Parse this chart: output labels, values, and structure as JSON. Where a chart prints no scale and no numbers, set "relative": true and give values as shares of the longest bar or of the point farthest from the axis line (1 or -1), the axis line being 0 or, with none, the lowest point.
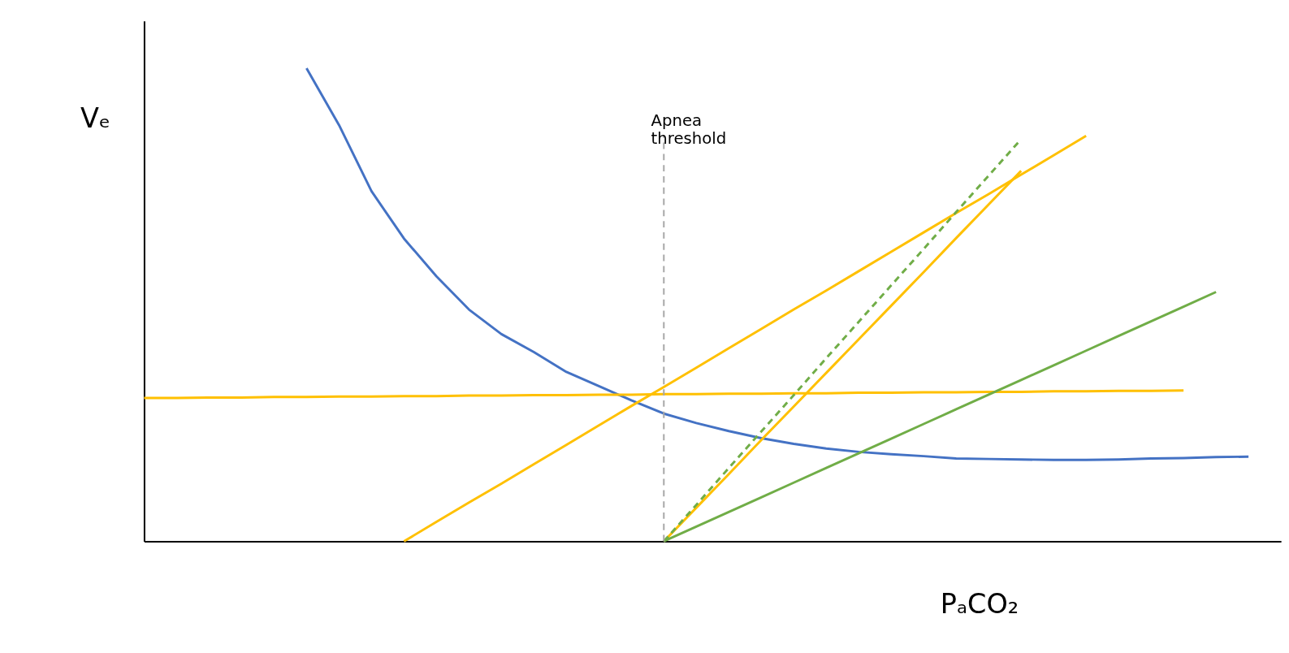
{
  "chart_data": {
    "type": "line",
    "relative": true,
    "xlabel": "PₐCO₂",
    "ylabel": "Vₑ",
    "ylim": [
      0,
      1.1
    ],
    "categories": [
      null,
      null,
      null,
      null,
      null,
      null,
      null,
      null,
      null,
      null,
      null,
      null,
      null,
      null,
      null,
      null,
      null,
      null,
      null,
      null,
      null,
      null,
      null,
      null,
      null,
      null,
      null,
      null,
      null,
      null,
      null,
      null,
      null,
      null,
      null,
      null
    ],
    "series": [
      {
        "color": "#4472c4",
        "values": [
          null,
          null,
          null,
          null,
          null,
          1.0,
          0.88,
          0.74,
          0.64,
          0.56,
          0.49,
          0.438,
          0.4,
          0.358,
          0.328,
          0.298,
          0.27,
          0.25,
          0.233,
          0.218,
          0.206,
          0.196,
          0.189,
          0.184,
          0.18,
          0.175,
          0.174,
          0.173,
          0.172,
          0.172,
          0.173,
          0.175,
          0.176,
          0.178,
          0.179,
          null
        ]
      },
      {
        "color": "#ffc000",
        "values": [
          0.303,
          0.303,
          0.304,
          0.304,
          0.305,
          0.305,
          0.306,
          0.306,
          0.307,
          0.307,
          0.308,
          0.308,
          0.309,
          0.309,
          0.31,
          0.31,
          0.311,
          0.311,
          0.312,
          0.312,
          0.313,
          0.313,
          0.314,
          0.314,
          0.315,
          0.315,
          0.316,
          0.316,
          0.317,
          0.317,
          0.318,
          0.318,
          0.319,
          null,
          null,
          null
        ]
      },
      {
        "color": "#ffc000",
        "values": [
          null,
          null,
          null,
          null,
          null,
          null,
          null,
          null,
          0,
          0.041,
          0.082,
          0.122,
          0.163,
          0.204,
          0.245,
          0.286,
          0.326,
          0.367,
          0.408,
          0.449,
          0.49,
          0.53,
          0.571,
          0.612,
          0.653,
          0.694,
          0.734,
          0.775,
          0.816,
          0.857,
          null,
          null,
          null,
          null,
          null,
          null
        ]
      },
      {
        "color": "#ffc000",
        "values": [
          null,
          null,
          null,
          null,
          null,
          null,
          null,
          null,
          null,
          null,
          null,
          null,
          null,
          null,
          null,
          null,
          0,
          0.071,
          0.142,
          0.214,
          0.285,
          0.356,
          0.427,
          0.498,
          0.569,
          0.641,
          0.712,
          0.783,
          null,
          null,
          null,
          null,
          null,
          null,
          null,
          null
        ]
      },
      {
        "color": "#70ad47",
        "line_style": "dashed",
        "values": [
          null,
          null,
          null,
          null,
          null,
          null,
          null,
          null,
          null,
          null,
          null,
          null,
          null,
          null,
          null,
          null,
          0,
          0.077,
          0.155,
          0.232,
          0.309,
          0.387,
          0.464,
          0.541,
          0.618,
          0.696,
          0.773,
          0.85,
          null,
          null,
          null,
          null,
          null,
          null,
          null,
          null
        ]
      },
      {
        "color": "#70ad47",
        "values": [
          null,
          null,
          null,
          null,
          null,
          null,
          null,
          null,
          null,
          null,
          null,
          null,
          null,
          null,
          null,
          null,
          0,
          0.031,
          0.062,
          0.093,
          0.124,
          0.155,
          0.186,
          0.217,
          0.248,
          0.279,
          0.31,
          0.341,
          0.372,
          0.403,
          0.434,
          0.465,
          0.496,
          0.527,
          null,
          null
        ]
      }
    ],
    "annotations": [
      "Apnea threshold"
    ]
  }
}
